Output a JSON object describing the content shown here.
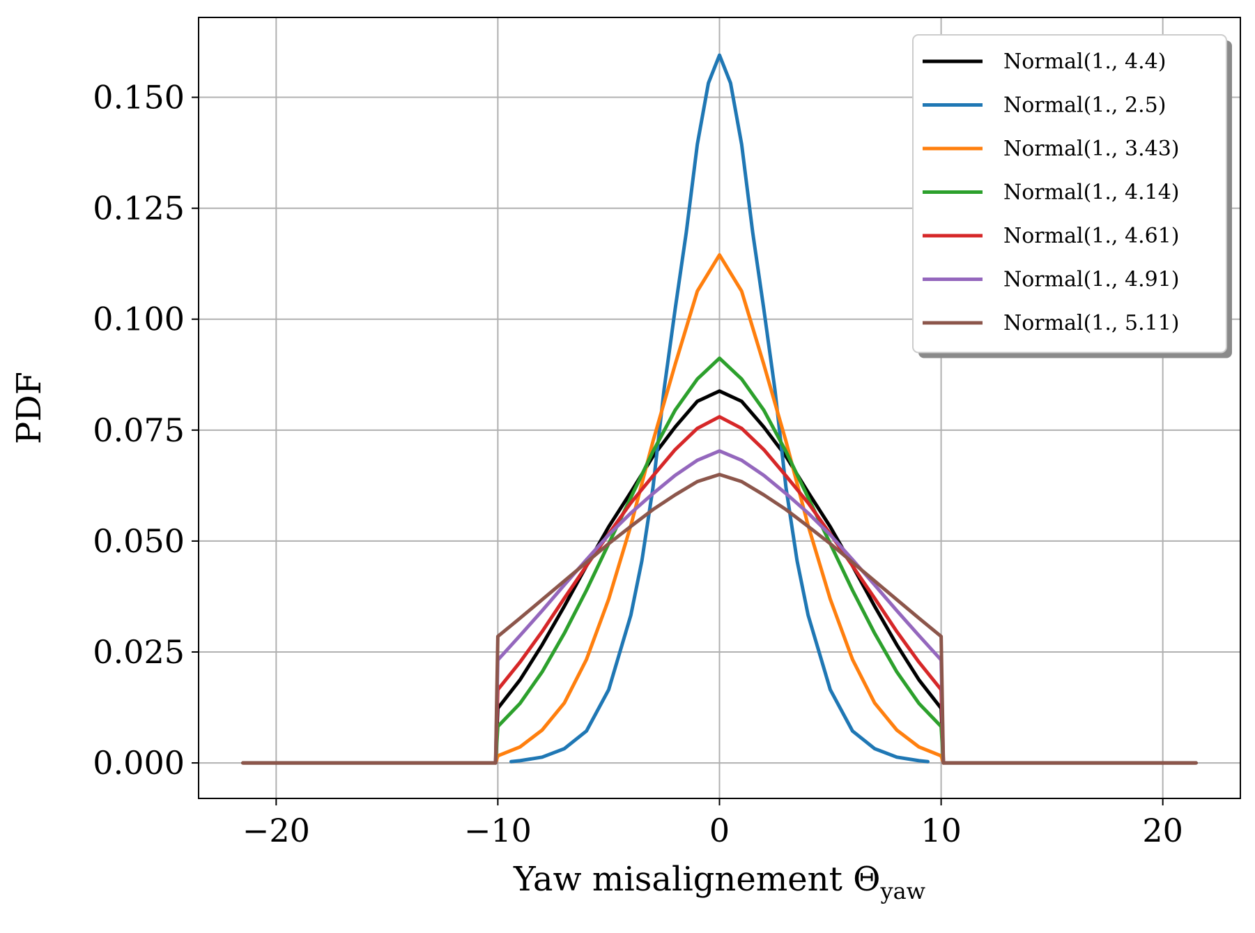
{
  "chart_data": {
    "type": "line",
    "xlabel": "Yaw misalignement Θ",
    "xlabel_sub": "yaw",
    "ylabel": "PDF",
    "xlim": [
      -23.5,
      23.5
    ],
    "ylim": [
      -0.008,
      0.168
    ],
    "xticks": [
      -20,
      -10,
      0,
      10,
      20
    ],
    "xtick_labels": [
      "−20",
      "−10",
      "0",
      "10",
      "20"
    ],
    "yticks": [
      0.0,
      0.025,
      0.05,
      0.075,
      0.1,
      0.125,
      0.15
    ],
    "ytick_labels": [
      "0.000",
      "0.025",
      "0.050",
      "0.075",
      "0.100",
      "0.125",
      "0.150"
    ],
    "grid": true,
    "legend": "top-right",
    "series": [
      {
        "name": "Normal(1., 4.4)",
        "color": "#000000",
        "x": [
          -21.5,
          -10.1,
          -10,
          -9,
          -8,
          -7,
          -6,
          -5,
          -4,
          -3,
          -2,
          -1,
          0,
          1,
          2,
          3,
          4,
          5,
          6,
          7,
          8,
          9,
          10,
          10.1,
          21.5
        ],
        "y": [
          0,
          0,
          0.0123,
          0.0187,
          0.0266,
          0.0353,
          0.0444,
          0.0532,
          0.061,
          0.0691,
          0.0757,
          0.0815,
          0.0838,
          0.0815,
          0.0757,
          0.0691,
          0.061,
          0.0532,
          0.0444,
          0.0353,
          0.0266,
          0.0187,
          0.0123,
          0,
          0
        ]
      },
      {
        "name": "Normal(1., 2.5)",
        "color": "#1f77b4",
        "x": [
          -9.4,
          -9,
          -8,
          -7,
          -6,
          -5,
          -4,
          -3.5,
          -3,
          -2.5,
          -2,
          -1.5,
          -1,
          -0.5,
          0,
          0.5,
          1,
          1.5,
          2,
          2.5,
          3,
          3.5,
          4,
          5,
          6,
          7,
          8,
          9,
          9.4
        ],
        "y": [
          0.0003,
          0.0005,
          0.0013,
          0.0032,
          0.0072,
          0.0165,
          0.0333,
          0.0456,
          0.0621,
          0.0842,
          0.1023,
          0.1195,
          0.1394,
          0.1532,
          0.1595,
          0.1532,
          0.1394,
          0.1195,
          0.1023,
          0.0842,
          0.0621,
          0.0456,
          0.0333,
          0.0165,
          0.0072,
          0.0032,
          0.0013,
          0.0005,
          0.0003
        ]
      },
      {
        "name": "Normal(1., 3.43)",
        "color": "#ff7f0e",
        "x": [
          -10.1,
          -10,
          -9,
          -8,
          -7,
          -6,
          -5,
          -4,
          -3,
          -2,
          -1,
          0,
          1,
          2,
          3,
          4,
          5,
          6,
          7,
          8,
          9,
          10,
          10.1
        ],
        "y": [
          0,
          0.0016,
          0.0036,
          0.0074,
          0.0135,
          0.0233,
          0.0369,
          0.0535,
          0.0725,
          0.0898,
          0.1063,
          0.1145,
          0.1063,
          0.0898,
          0.0725,
          0.0535,
          0.0369,
          0.0233,
          0.0135,
          0.0074,
          0.0036,
          0.0016,
          0
        ]
      },
      {
        "name": "Normal(1., 4.14)",
        "color": "#2ca02c",
        "x": [
          -10.1,
          -10,
          -9,
          -8,
          -7,
          -6,
          -5,
          -4,
          -3,
          -2,
          -1,
          0,
          1,
          2,
          3,
          4,
          5,
          6,
          7,
          8,
          9,
          10,
          10.1
        ],
        "y": [
          0,
          0.0082,
          0.0134,
          0.0205,
          0.0292,
          0.0389,
          0.0494,
          0.0598,
          0.0702,
          0.0795,
          0.0865,
          0.0912,
          0.0865,
          0.0795,
          0.0702,
          0.0598,
          0.0494,
          0.0389,
          0.0292,
          0.0205,
          0.0134,
          0.0082,
          0
        ]
      },
      {
        "name": "Normal(1., 4.61)",
        "color": "#d62728",
        "x": [
          -10.1,
          -10,
          -9,
          -8,
          -7,
          -6,
          -5,
          -4,
          -3,
          -2,
          -1,
          0,
          1,
          2,
          3,
          4,
          5,
          6,
          7,
          8,
          9,
          10,
          10.1
        ],
        "y": [
          0,
          0.0165,
          0.0227,
          0.0296,
          0.0371,
          0.0444,
          0.0516,
          0.0586,
          0.0647,
          0.0706,
          0.0754,
          0.078,
          0.0754,
          0.0706,
          0.0647,
          0.0586,
          0.0516,
          0.0444,
          0.0371,
          0.0296,
          0.0227,
          0.0165,
          0
        ]
      },
      {
        "name": "Normal(1., 4.91)",
        "color": "#9467bd",
        "x": [
          -10.1,
          -10,
          -9,
          -8,
          -7,
          -6,
          -5,
          -4,
          -3,
          -2,
          -1,
          0,
          1,
          2,
          3,
          4,
          5,
          6,
          7,
          8,
          9,
          10,
          10.1
        ],
        "y": [
          0,
          0.0232,
          0.0287,
          0.0343,
          0.0401,
          0.0458,
          0.0514,
          0.0563,
          0.0607,
          0.0648,
          0.0682,
          0.0703,
          0.0682,
          0.0648,
          0.0607,
          0.0563,
          0.0514,
          0.0458,
          0.0401,
          0.0343,
          0.0287,
          0.0232,
          0
        ]
      },
      {
        "name": "Normal(1., 5.11)",
        "color": "#8c564b",
        "x": [
          -21.5,
          -10.1,
          -10,
          -9,
          -8,
          -7,
          -6,
          -5,
          -4,
          -3,
          -2,
          -1,
          0,
          1,
          2,
          3,
          4,
          5,
          6,
          7,
          8,
          9,
          10,
          10.1,
          21.5
        ],
        "y": [
          0,
          0,
          0.0285,
          0.0326,
          0.0368,
          0.041,
          0.0452,
          0.0494,
          0.0533,
          0.0571,
          0.0604,
          0.0634,
          0.065,
          0.0634,
          0.0604,
          0.0571,
          0.0533,
          0.0494,
          0.0452,
          0.041,
          0.0368,
          0.0326,
          0.0285,
          0,
          0
        ]
      }
    ]
  }
}
